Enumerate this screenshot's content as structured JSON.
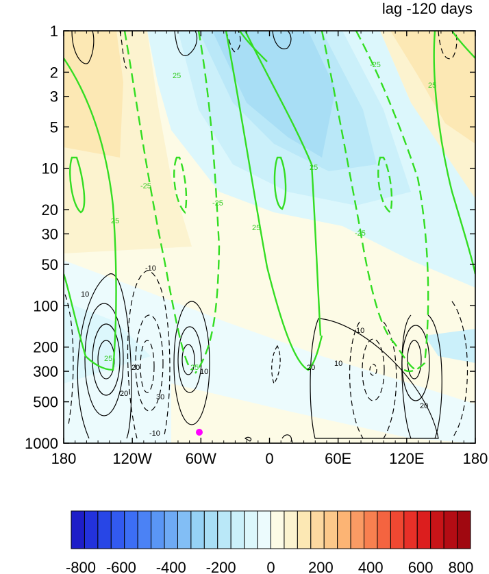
{
  "chart_data": {
    "type": "heatmap",
    "title": "lag -120 days",
    "x_ticks": [
      "180",
      "120W",
      "60W",
      "0",
      "60E",
      "120E",
      "180"
    ],
    "y_ticks": [
      "1",
      "2",
      "3",
      "5",
      "10",
      "20",
      "30",
      "50",
      "100",
      "200",
      "300",
      "500",
      "1000"
    ],
    "y_scale": "log",
    "y_range": [
      1000,
      1
    ],
    "x_range": [
      -180,
      180
    ],
    "shading_levels": [
      -800,
      -750,
      -700,
      -650,
      -600,
      -550,
      -500,
      -450,
      -400,
      -350,
      -300,
      -250,
      -200,
      -150,
      -100,
      -50,
      0,
      50,
      100,
      150,
      200,
      250,
      300,
      350,
      400,
      450,
      500,
      550,
      600,
      650,
      700,
      750,
      800
    ],
    "colorbar_labels": [
      "-800",
      "-600",
      "-400",
      "-200",
      "0",
      "200",
      "400",
      "600",
      "800"
    ],
    "colorbar_colors": [
      "#1e1ec8",
      "#2332dc",
      "#2846e6",
      "#325af0",
      "#3c6ef5",
      "#4b82f5",
      "#5a96f5",
      "#6eaaf5",
      "#82bef5",
      "#96d2f5",
      "#a8def5",
      "#bae8f8",
      "#cbf0fa",
      "#dcf7fc",
      "#ecfbfd",
      "#fdfbe6",
      "#fcf3cf",
      "#fce8b4",
      "#fcd8a0",
      "#fcc88a",
      "#fcb474",
      "#fa9b64",
      "#f88050",
      "#f46440",
      "#f04832",
      "#e83028",
      "#dc1e1e",
      "#c81418",
      "#b40c14",
      "#a00810"
    ],
    "contour_labels_black": [
      "10",
      "10",
      "20",
      "20",
      "30",
      "-10",
      "-10",
      "10",
      "10",
      "20",
      "20"
    ],
    "contour_labels_green": [
      "25",
      "25",
      "-25",
      "25",
      "-25",
      "25",
      "25",
      "-25",
      "-25",
      "25",
      "25"
    ],
    "marker": {
      "lon": -60,
      "p": 850,
      "color": "#ff00ff"
    }
  }
}
